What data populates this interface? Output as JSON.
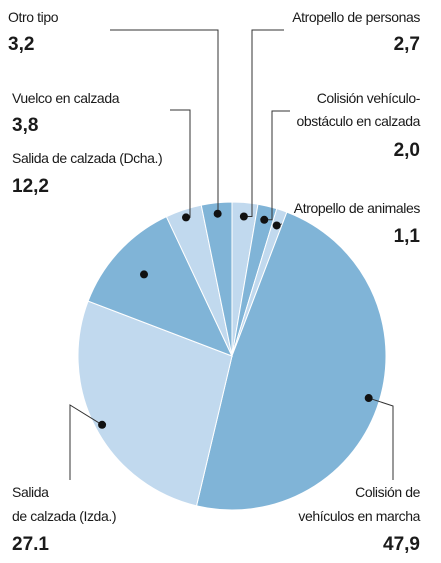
{
  "chart_data": {
    "type": "pie",
    "categories": [
      [
        "Atropello de personas"
      ],
      [
        "Colisión vehículo-",
        "obstáculo en calzada"
      ],
      [
        "Atropello de animales"
      ],
      [
        "Colisión de",
        "vehículos en marcha"
      ],
      [
        "Salida",
        "de calzada (Izda.)"
      ],
      [
        "Salida de calzada (Dcha.)"
      ],
      [
        "Vuelco en calzada"
      ],
      [
        "Otro tipo"
      ]
    ],
    "values": [
      2.7,
      2.0,
      1.1,
      47.9,
      27.1,
      12.2,
      3.8,
      3.2
    ],
    "value_labels": [
      "2,7",
      "2,0",
      "1,1",
      "47,9",
      "27.1",
      "12,2",
      "3,8",
      "3,2"
    ],
    "colors": [
      "#c1d9ee",
      "#80b4d7",
      "#c1d9ee",
      "#80b4d7",
      "#c1d9ee",
      "#80b4d7",
      "#c1d9ee",
      "#80b4d7"
    ]
  }
}
